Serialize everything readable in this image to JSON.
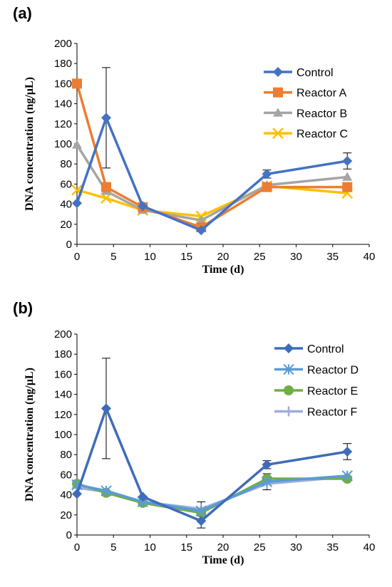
{
  "panels": [
    {
      "label": "(a)",
      "chart_data": {
        "type": "line",
        "xlabel": "Time (d)",
        "ylabel": "DNA concentration (ng/µL)",
        "xlim": [
          0,
          40
        ],
        "ylim": [
          0,
          200
        ],
        "xticks": [
          "0",
          "5",
          "10",
          "15",
          "20",
          "25",
          "30",
          "35",
          "40"
        ],
        "yticks": [
          "0",
          "20",
          "40",
          "60",
          "80",
          "100",
          "120",
          "140",
          "160",
          "180",
          "200"
        ],
        "grid": false,
        "legend": "top-right",
        "x": [
          0,
          4,
          9,
          17,
          26,
          37
        ],
        "series": [
          {
            "name": "Control",
            "color": "#4472C4",
            "marker": "diamond",
            "values": [
              41,
              126,
              38,
              14,
              70,
              83
            ],
            "errors": [
              null,
              50,
              null,
              null,
              4,
              8
            ]
          },
          {
            "name": "Reactor A",
            "color": "#ED7D31",
            "marker": "square",
            "values": [
              160,
              57,
              37,
              17,
              57,
              57
            ],
            "errors": [
              null,
              null,
              null,
              null,
              null,
              null
            ]
          },
          {
            "name": "Reactor B",
            "color": "#A5A5A5",
            "marker": "triangle",
            "values": [
              99,
              53,
              34,
              24,
              59,
              67
            ],
            "errors": [
              null,
              null,
              null,
              null,
              null,
              null
            ]
          },
          {
            "name": "Reactor C",
            "color": "#FFC000",
            "marker": "x",
            "values": [
              54,
              46,
              34,
              28,
              58,
              51
            ],
            "errors": [
              null,
              null,
              null,
              null,
              null,
              null
            ]
          }
        ]
      }
    },
    {
      "label": "(b)",
      "chart_data": {
        "type": "line",
        "xlabel": "Time (d)",
        "ylabel": "DNA concentration (ng/µL)",
        "xlim": [
          0,
          40
        ],
        "ylim": [
          0,
          200
        ],
        "xticks": [
          "0",
          "5",
          "10",
          "15",
          "20",
          "25",
          "30",
          "35",
          "40"
        ],
        "yticks": [
          "0",
          "20",
          "40",
          "60",
          "80",
          "100",
          "120",
          "140",
          "160",
          "180",
          "200"
        ],
        "grid": false,
        "legend": "top-right",
        "x": [
          0,
          4,
          9,
          17,
          26,
          37
        ],
        "series": [
          {
            "name": "Control",
            "color": "#3F6CB8",
            "marker": "diamond",
            "values": [
              41,
              126,
              38,
              14,
              70,
              83
            ],
            "errors": [
              null,
              50,
              null,
              7,
              4,
              8
            ]
          },
          {
            "name": "Reactor D",
            "color": "#5B9BD5",
            "marker": "star",
            "values": [
              50,
              44,
              33,
              24,
              53,
              59
            ],
            "errors": [
              null,
              null,
              null,
              null,
              8,
              null
            ]
          },
          {
            "name": "Reactor E",
            "color": "#70AD47",
            "marker": "circle",
            "values": [
              51,
              42,
              32,
              22,
              56,
              56
            ],
            "errors": [
              null,
              null,
              null,
              null,
              null,
              null
            ]
          },
          {
            "name": "Reactor F",
            "color": "#9DAEDB",
            "marker": "plus",
            "values": [
              47,
              43,
              33,
              26,
              51,
              58
            ],
            "errors": [
              null,
              null,
              null,
              7,
              null,
              null
            ]
          }
        ]
      }
    }
  ]
}
